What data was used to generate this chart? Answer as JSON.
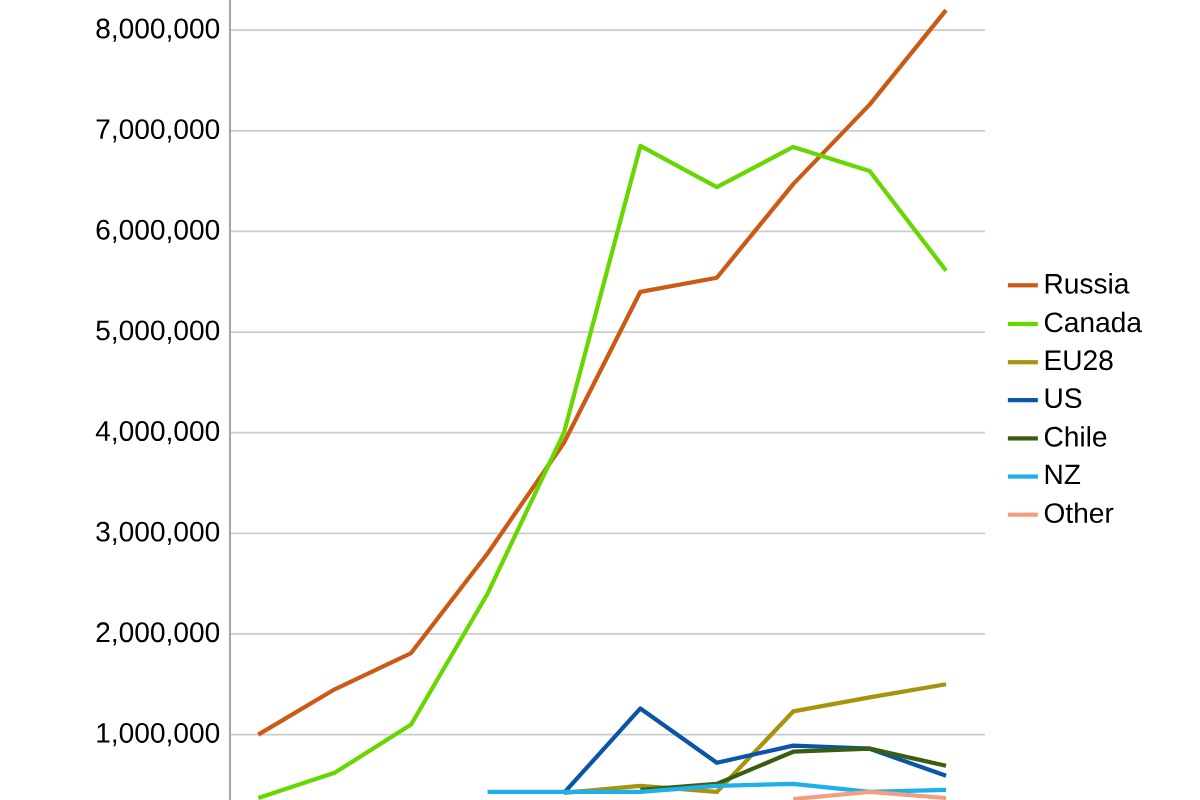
{
  "chart_data": {
    "type": "line",
    "categories": [
      null,
      null,
      null,
      null,
      null,
      null,
      null,
      null,
      null,
      null
    ],
    "series": [
      {
        "name": "Russia",
        "color": "#cc5a14",
        "values": [
          1000000,
          1450000,
          1810000,
          2800000,
          3900000,
          5400000,
          5540000,
          6470000,
          7260000,
          8200000
        ]
      },
      {
        "name": "Canada",
        "color": "#66d800",
        "values": [
          370000,
          620000,
          1100000,
          2400000,
          4000000,
          6850000,
          6440000,
          6840000,
          6600000,
          5610000
        ]
      },
      {
        "name": "EU28",
        "color": "#a8920e",
        "values": [
          null,
          null,
          null,
          null,
          420000,
          490000,
          430000,
          1230000,
          1370000,
          1500000
        ]
      },
      {
        "name": "US",
        "color": "#0a55a8",
        "values": [
          null,
          null,
          null,
          null,
          420000,
          1260000,
          720000,
          890000,
          860000,
          590000
        ]
      },
      {
        "name": "Chile",
        "color": "#3a5e10",
        "values": [
          null,
          null,
          null,
          null,
          null,
          450000,
          510000,
          830000,
          860000,
          690000
        ]
      },
      {
        "name": "NZ",
        "color": "#1eb0e8",
        "values": [
          null,
          null,
          null,
          430000,
          430000,
          430000,
          490000,
          510000,
          430000,
          450000
        ]
      },
      {
        "name": "Other",
        "color": "#f0a080",
        "values": [
          null,
          null,
          null,
          null,
          null,
          null,
          null,
          360000,
          430000,
          370000
        ]
      }
    ],
    "ylim": [
      350000,
      8300000
    ],
    "yticks": [
      {
        "value": 1000000,
        "label": "1,000,000"
      },
      {
        "value": 2000000,
        "label": "2,000,000"
      },
      {
        "value": 3000000,
        "label": "3,000,000"
      },
      {
        "value": 4000000,
        "label": "4,000,000"
      },
      {
        "value": 5000000,
        "label": "5,000,000"
      },
      {
        "value": 6000000,
        "label": "6,000,000"
      },
      {
        "value": 7000000,
        "label": "7,000,000"
      },
      {
        "value": 8000000,
        "label": "8,000,000"
      }
    ],
    "grid": "y",
    "legend": "right",
    "marker": "none",
    "line_style": "solid"
  }
}
